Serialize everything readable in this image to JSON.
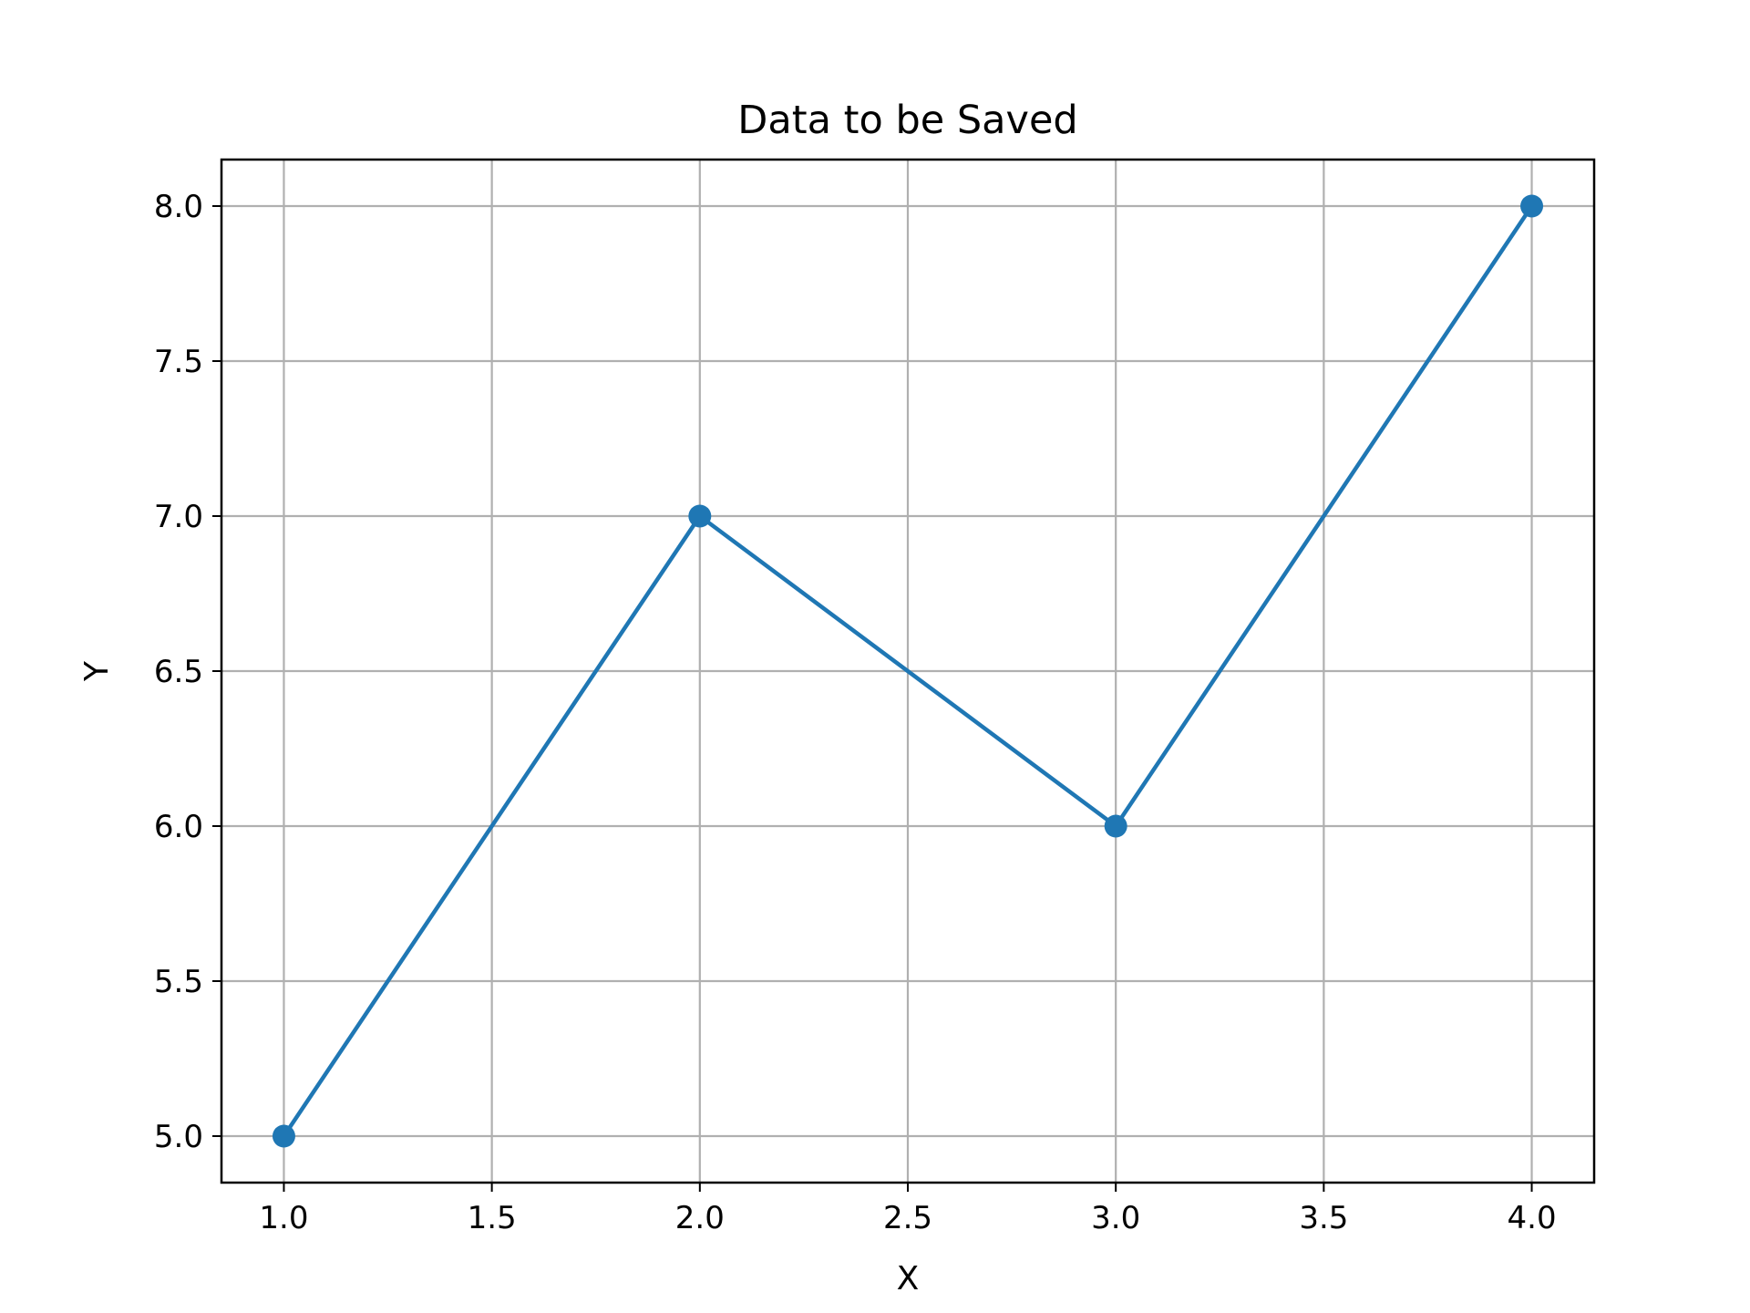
{
  "chart_data": {
    "type": "line",
    "title": "Data to be Saved",
    "xlabel": "X",
    "ylabel": "Y",
    "x": [
      1,
      2,
      3,
      4
    ],
    "series": [
      {
        "values": [
          5,
          7,
          6,
          8
        ],
        "color": "#1f77b4",
        "marker": "circle"
      }
    ],
    "xlim": [
      0.85,
      4.15
    ],
    "ylim": [
      4.85,
      8.15
    ],
    "xticks": [
      1.0,
      1.5,
      2.0,
      2.5,
      3.0,
      3.5,
      4.0
    ],
    "yticks": [
      5.0,
      5.5,
      6.0,
      6.5,
      7.0,
      7.5,
      8.0
    ],
    "xtick_labels": [
      "1.0",
      "1.5",
      "2.0",
      "2.5",
      "3.0",
      "3.5",
      "4.0"
    ],
    "ytick_labels": [
      "5.0",
      "5.5",
      "6.0",
      "6.5",
      "7.0",
      "7.5",
      "8.0"
    ],
    "grid": true,
    "grid_color": "#b0b0b0"
  }
}
